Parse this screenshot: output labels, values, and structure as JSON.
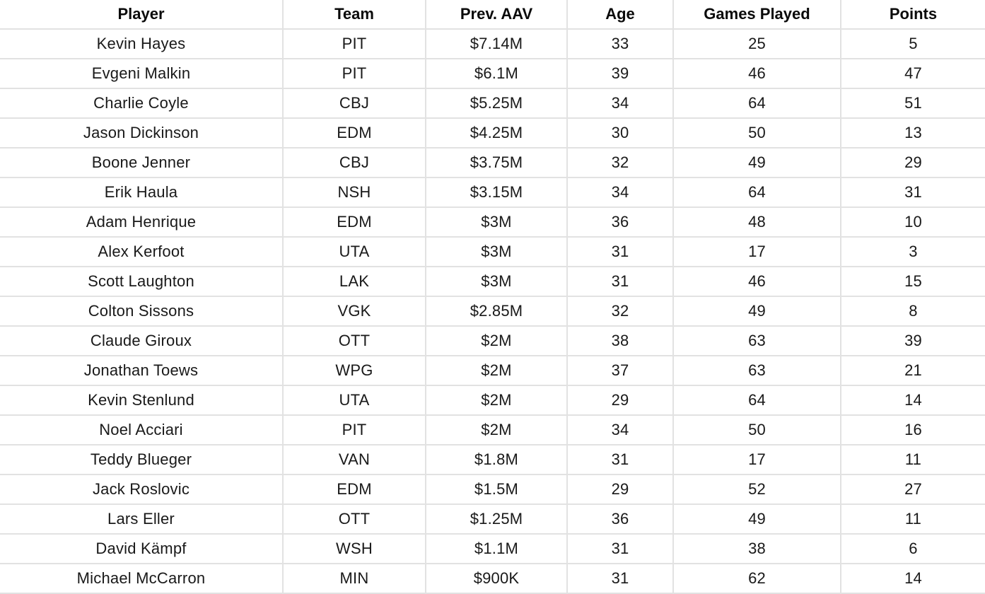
{
  "colors": {
    "background": "#ffffff",
    "border": "#e2e2e2",
    "header_text": "#0a0a0a",
    "body_text": "#191919"
  },
  "chart_data": {
    "type": "table",
    "title": "",
    "columns": [
      "Player",
      "Team",
      "Prev. AAV",
      "Age",
      "Games Played",
      "Points"
    ],
    "rows": [
      [
        "Kevin Hayes",
        "PIT",
        "$7.14M",
        33,
        25,
        5
      ],
      [
        "Evgeni Malkin",
        "PIT",
        "$6.1M",
        39,
        46,
        47
      ],
      [
        "Charlie Coyle",
        "CBJ",
        "$5.25M",
        34,
        64,
        51
      ],
      [
        "Jason Dickinson",
        "EDM",
        "$4.25M",
        30,
        50,
        13
      ],
      [
        "Boone Jenner",
        "CBJ",
        "$3.75M",
        32,
        49,
        29
      ],
      [
        "Erik Haula",
        "NSH",
        "$3.15M",
        34,
        64,
        31
      ],
      [
        "Adam Henrique",
        "EDM",
        "$3M",
        36,
        48,
        10
      ],
      [
        "Alex Kerfoot",
        "UTA",
        "$3M",
        31,
        17,
        3
      ],
      [
        "Scott Laughton",
        "LAK",
        "$3M",
        31,
        46,
        15
      ],
      [
        "Colton Sissons",
        "VGK",
        "$2.85M",
        32,
        49,
        8
      ],
      [
        "Claude Giroux",
        "OTT",
        "$2M",
        38,
        63,
        39
      ],
      [
        "Jonathan Toews",
        "WPG",
        "$2M",
        37,
        63,
        21
      ],
      [
        "Kevin Stenlund",
        "UTA",
        "$2M",
        29,
        64,
        14
      ],
      [
        "Noel Acciari",
        "PIT",
        "$2M",
        34,
        50,
        16
      ],
      [
        "Teddy Blueger",
        "VAN",
        "$1.8M",
        31,
        17,
        11
      ],
      [
        "Jack Roslovic",
        "EDM",
        "$1.5M",
        29,
        52,
        27
      ],
      [
        "Lars Eller",
        "OTT",
        "$1.25M",
        36,
        49,
        11
      ],
      [
        "David Kämpf",
        "WSH",
        "$1.1M",
        31,
        38,
        6
      ],
      [
        "Michael McCarron",
        "MIN",
        "$900K",
        31,
        62,
        14
      ]
    ],
    "layout": {
      "grid": "on",
      "header_position": "top",
      "text_align": "center"
    }
  }
}
